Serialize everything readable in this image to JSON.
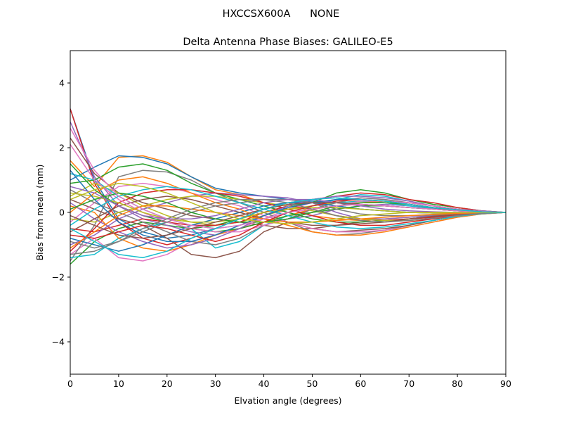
{
  "chart_data": {
    "type": "line",
    "suptitle": "HXCCSX600A      NONE",
    "title": "Delta Antenna Phase Biases: GALILEO-E5",
    "xlabel": "Elvation angle (degrees)",
    "ylabel": "Bias from mean (mm)",
    "xlim": [
      0,
      90
    ],
    "ylim": [
      -5,
      5
    ],
    "xticks": [
      0,
      10,
      20,
      30,
      40,
      50,
      60,
      70,
      80,
      90
    ],
    "xtick_labels": [
      "0",
      "10",
      "20",
      "30",
      "40",
      "50",
      "60",
      "70",
      "80",
      "90"
    ],
    "yticks": [
      -4,
      -2,
      0,
      2,
      4
    ],
    "ytick_labels": [
      "−4",
      "−2",
      "0",
      "2",
      "4"
    ],
    "grid": false,
    "legend": "none",
    "x": [
      0,
      5,
      10,
      15,
      20,
      25,
      30,
      35,
      40,
      45,
      50,
      55,
      60,
      65,
      70,
      75,
      80,
      85,
      90
    ],
    "colors": [
      "#1f77b4",
      "#ff7f0e",
      "#2ca02c",
      "#d62728",
      "#9467bd",
      "#8c564b",
      "#e377c2",
      "#7f7f7f",
      "#bcbd22",
      "#17becf"
    ],
    "series": [
      {
        "values": [
          3.2,
          1.0,
          -0.2,
          -0.6,
          -0.8,
          -0.7,
          -0.5,
          -0.2,
          0.1,
          0.3,
          0.35,
          0.3,
          0.25,
          0.2,
          0.15,
          0.1,
          0.05,
          0.02,
          0
        ]
      },
      {
        "values": [
          1.6,
          0.8,
          1.7,
          1.75,
          1.55,
          1.1,
          0.7,
          0.55,
          0.3,
          0.1,
          -0.1,
          -0.2,
          -0.25,
          -0.2,
          -0.15,
          -0.1,
          -0.05,
          -0.02,
          0
        ]
      },
      {
        "values": [
          -1.6,
          -0.9,
          -0.5,
          -0.3,
          -0.4,
          -0.5,
          -0.4,
          -0.2,
          0.0,
          0.2,
          0.3,
          0.6,
          0.7,
          0.6,
          0.4,
          0.25,
          0.15,
          0.05,
          0
        ]
      },
      {
        "values": [
          3.2,
          0.9,
          -0.3,
          -0.8,
          -1.0,
          -0.8,
          -0.5,
          -0.2,
          0.1,
          0.3,
          0.4,
          0.5,
          0.6,
          0.55,
          0.4,
          0.3,
          0.15,
          0.05,
          0
        ]
      },
      {
        "values": [
          2.8,
          1.1,
          0.2,
          -0.2,
          -0.4,
          -0.6,
          -0.7,
          -0.5,
          -0.3,
          -0.2,
          -0.1,
          0.1,
          0.2,
          0.25,
          0.2,
          0.15,
          0.1,
          0.05,
          0
        ]
      },
      {
        "values": [
          2.3,
          1.2,
          0.6,
          0.3,
          0.1,
          -0.1,
          -0.2,
          -0.3,
          -0.4,
          -0.5,
          -0.5,
          -0.4,
          -0.3,
          -0.25,
          -0.2,
          -0.15,
          -0.1,
          -0.05,
          0
        ]
      },
      {
        "values": [
          -1.3,
          -0.8,
          -1.4,
          -1.5,
          -1.3,
          -0.9,
          -0.7,
          -0.5,
          -0.2,
          0.1,
          0.3,
          0.4,
          0.45,
          0.4,
          0.3,
          0.2,
          0.1,
          0.03,
          0
        ]
      },
      {
        "values": [
          -1.5,
          -0.4,
          1.1,
          1.3,
          1.25,
          1.0,
          0.6,
          0.3,
          0.0,
          -0.3,
          -0.6,
          -0.7,
          -0.65,
          -0.55,
          -0.4,
          -0.25,
          -0.12,
          -0.04,
          0
        ]
      },
      {
        "values": [
          0.5,
          0.9,
          0.6,
          0.2,
          -0.1,
          -0.3,
          -0.4,
          -0.3,
          -0.1,
          0.1,
          0.2,
          0.3,
          0.35,
          0.3,
          0.25,
          0.15,
          0.08,
          0.02,
          0
        ]
      },
      {
        "values": [
          -1.4,
          -1.3,
          -0.8,
          -0.5,
          -0.3,
          -0.5,
          -1.1,
          -0.9,
          -0.4,
          -0.1,
          0.1,
          0.3,
          0.35,
          0.3,
          0.2,
          0.12,
          0.06,
          0.02,
          0
        ]
      },
      {
        "values": [
          1.0,
          1.4,
          1.75,
          1.7,
          1.5,
          1.1,
          0.75,
          0.6,
          0.5,
          0.4,
          0.3,
          0.2,
          0.1,
          0.05,
          0.0,
          -0.02,
          -0.02,
          -0.01,
          0
        ]
      },
      {
        "values": [
          0.2,
          0.0,
          -0.8,
          -1.1,
          -1.2,
          -1.0,
          -0.7,
          -0.5,
          -0.3,
          -0.1,
          0.1,
          0.2,
          0.3,
          0.35,
          0.3,
          0.2,
          0.1,
          0.03,
          0
        ]
      },
      {
        "values": [
          0.9,
          1.0,
          1.4,
          1.5,
          1.3,
          0.9,
          0.6,
          0.4,
          0.2,
          0.0,
          -0.2,
          -0.3,
          -0.3,
          -0.25,
          -0.2,
          -0.12,
          -0.06,
          -0.02,
          0
        ]
      },
      {
        "values": [
          -0.5,
          -0.6,
          -0.4,
          -0.2,
          -0.3,
          -0.4,
          -0.4,
          -0.3,
          0.0,
          0.2,
          0.1,
          -0.1,
          -0.2,
          -0.25,
          -0.2,
          -0.15,
          -0.08,
          -0.03,
          0
        ]
      },
      {
        "values": [
          -1.0,
          -0.7,
          -0.2,
          0.1,
          0.3,
          0.5,
          0.6,
          0.55,
          0.5,
          0.45,
          0.3,
          0.0,
          -0.2,
          -0.2,
          -0.15,
          -0.1,
          -0.05,
          -0.02,
          0
        ]
      },
      {
        "values": [
          0.4,
          0.1,
          -0.2,
          -0.4,
          -0.8,
          -1.3,
          -1.4,
          -1.2,
          -0.6,
          -0.3,
          -0.5,
          -0.6,
          -0.55,
          -0.5,
          -0.4,
          -0.25,
          -0.12,
          -0.04,
          0
        ]
      },
      {
        "values": [
          -0.3,
          0.3,
          0.8,
          0.9,
          0.8,
          0.6,
          0.4,
          0.2,
          -0.1,
          -0.3,
          -0.5,
          -0.6,
          -0.6,
          -0.55,
          -0.45,
          -0.3,
          -0.15,
          -0.05,
          0
        ]
      },
      {
        "values": [
          0.7,
          0.3,
          0.0,
          -0.3,
          -0.6,
          -0.9,
          -1.0,
          -0.8,
          -0.4,
          -0.2,
          0.1,
          0.3,
          0.45,
          0.4,
          0.3,
          0.2,
          0.1,
          0.03,
          0
        ]
      },
      {
        "values": [
          -0.2,
          -0.3,
          0.0,
          0.2,
          0.4,
          0.5,
          0.5,
          0.4,
          0.3,
          0.2,
          0.05,
          -0.1,
          -0.2,
          -0.25,
          -0.25,
          -0.2,
          -0.1,
          -0.03,
          0
        ]
      },
      {
        "values": [
          1.2,
          1.0,
          0.5,
          0.1,
          -0.2,
          -0.4,
          -0.5,
          -0.4,
          -0.2,
          0.0,
          0.2,
          0.4,
          0.55,
          0.5,
          0.35,
          0.2,
          0.1,
          0.03,
          0
        ]
      },
      {
        "values": [
          -0.8,
          -1.0,
          -1.2,
          -1.0,
          -0.7,
          -0.4,
          -0.2,
          0.0,
          0.2,
          0.3,
          0.3,
          0.2,
          0.1,
          0.05,
          0.0,
          -0.02,
          -0.02,
          -0.01,
          0
        ]
      },
      {
        "values": [
          0.0,
          0.6,
          1.0,
          1.1,
          0.9,
          0.6,
          0.3,
          0.1,
          -0.2,
          -0.4,
          -0.6,
          -0.7,
          -0.7,
          -0.6,
          -0.45,
          -0.3,
          -0.15,
          -0.05,
          0
        ]
      },
      {
        "values": [
          1.5,
          0.7,
          0.2,
          -0.1,
          -0.3,
          -0.5,
          -0.6,
          -0.5,
          -0.3,
          -0.1,
          0.0,
          0.1,
          0.2,
          0.2,
          0.15,
          0.1,
          0.05,
          0.02,
          0
        ]
      },
      {
        "values": [
          -1.2,
          -0.5,
          0.3,
          0.6,
          0.7,
          0.7,
          0.6,
          0.5,
          0.3,
          0.1,
          -0.1,
          -0.3,
          -0.4,
          -0.4,
          -0.3,
          -0.2,
          -0.1,
          -0.03,
          0
        ]
      },
      {
        "values": [
          0.3,
          -0.2,
          -0.6,
          -0.9,
          -1.1,
          -1.0,
          -0.8,
          -0.5,
          -0.1,
          0.2,
          0.4,
          0.5,
          0.5,
          0.45,
          0.35,
          0.2,
          0.1,
          0.03,
          0
        ]
      },
      {
        "values": [
          -0.6,
          -0.2,
          0.2,
          0.4,
          0.5,
          0.4,
          0.2,
          0.0,
          -0.2,
          -0.3,
          -0.4,
          -0.4,
          -0.35,
          -0.3,
          -0.2,
          -0.12,
          -0.06,
          -0.02,
          0
        ]
      },
      {
        "values": [
          2.1,
          1.0,
          0.4,
          0.0,
          -0.3,
          -0.5,
          -0.6,
          -0.6,
          -0.4,
          -0.2,
          0.0,
          0.2,
          0.35,
          0.35,
          0.3,
          0.2,
          0.1,
          0.03,
          0
        ]
      },
      {
        "values": [
          -0.9,
          -1.1,
          -0.9,
          -0.6,
          -0.3,
          0.0,
          0.2,
          0.3,
          0.4,
          0.4,
          0.3,
          0.1,
          -0.05,
          -0.1,
          -0.1,
          -0.08,
          -0.04,
          -0.01,
          0
        ]
      },
      {
        "values": [
          0.6,
          0.5,
          0.3,
          0.0,
          -0.2,
          -0.3,
          -0.3,
          -0.2,
          0.0,
          0.1,
          0.15,
          0.15,
          0.1,
          0.05,
          0.0,
          -0.02,
          -0.02,
          -0.01,
          0
        ]
      },
      {
        "values": [
          -0.4,
          0.1,
          0.5,
          0.7,
          0.8,
          0.7,
          0.5,
          0.3,
          0.1,
          -0.1,
          -0.3,
          -0.45,
          -0.5,
          -0.45,
          -0.35,
          -0.25,
          -0.12,
          -0.04,
          0
        ]
      },
      {
        "values": [
          1.3,
          0.4,
          -0.3,
          -0.7,
          -0.9,
          -0.9,
          -0.7,
          -0.4,
          -0.1,
          0.15,
          0.3,
          0.4,
          0.4,
          0.35,
          0.25,
          0.15,
          0.08,
          0.02,
          0
        ]
      },
      {
        "values": [
          -1.1,
          -0.6,
          -0.1,
          0.2,
          0.2,
          0.1,
          0.0,
          -0.1,
          -0.2,
          -0.3,
          -0.3,
          -0.25,
          -0.2,
          -0.15,
          -0.1,
          -0.06,
          -0.03,
          -0.01,
          0
        ]
      },
      {
        "values": [
          0.1,
          0.4,
          0.6,
          0.5,
          0.3,
          0.0,
          -0.2,
          -0.3,
          -0.3,
          -0.2,
          0.0,
          0.2,
          0.3,
          0.3,
          0.25,
          0.15,
          0.08,
          0.02,
          0
        ]
      },
      {
        "values": [
          -0.7,
          -0.8,
          -0.6,
          -0.4,
          -0.5,
          -0.7,
          -0.9,
          -0.7,
          -0.3,
          0.0,
          0.2,
          0.35,
          0.4,
          0.35,
          0.25,
          0.15,
          0.08,
          0.02,
          0
        ]
      },
      {
        "values": [
          0.8,
          0.6,
          0.2,
          -0.1,
          -0.2,
          -0.2,
          -0.1,
          0.1,
          0.3,
          0.4,
          0.4,
          0.3,
          0.2,
          0.1,
          0.05,
          0.02,
          0.0,
          0.0,
          0
        ]
      },
      {
        "values": [
          -0.1,
          -0.4,
          -0.7,
          -0.8,
          -0.7,
          -0.5,
          -0.3,
          -0.1,
          0.1,
          0.25,
          0.3,
          0.3,
          0.25,
          0.2,
          0.15,
          0.1,
          0.05,
          0.02,
          0
        ]
      },
      {
        "values": [
          2.6,
          1.3,
          0.5,
          0.1,
          -0.2,
          -0.4,
          -0.5,
          -0.4,
          -0.2,
          0.0,
          0.1,
          0.2,
          0.25,
          0.2,
          0.15,
          0.1,
          0.05,
          0.02,
          0
        ]
      },
      {
        "values": [
          -1.3,
          -1.2,
          -0.9,
          -0.5,
          -0.2,
          0.1,
          0.3,
          0.4,
          0.4,
          0.3,
          0.1,
          -0.1,
          -0.25,
          -0.3,
          -0.25,
          -0.18,
          -0.1,
          -0.03,
          0
        ]
      },
      {
        "values": [
          0.4,
          0.7,
          0.9,
          0.8,
          0.6,
          0.3,
          0.0,
          -0.2,
          -0.3,
          -0.35,
          -0.3,
          -0.2,
          -0.1,
          -0.05,
          0.0,
          0.0,
          0.0,
          0.0,
          0
        ]
      },
      {
        "values": [
          -0.5,
          -0.9,
          -1.3,
          -1.4,
          -1.2,
          -0.8,
          -0.5,
          -0.2,
          0.1,
          0.3,
          0.4,
          0.45,
          0.4,
          0.35,
          0.25,
          0.15,
          0.08,
          0.02,
          0
        ]
      }
    ]
  }
}
